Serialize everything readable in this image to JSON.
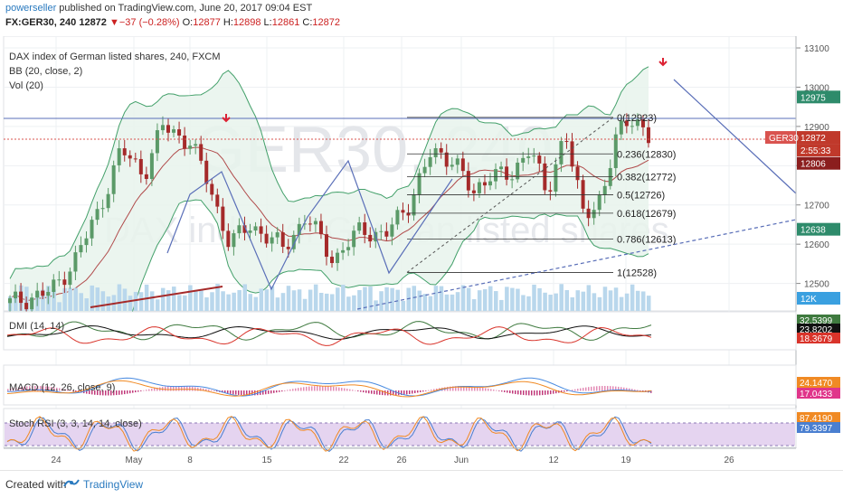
{
  "header": {
    "author": "powerseller",
    "published": " published on TradingView.com, June 20, 2017 09:04 EST",
    "symbol": "FX:GER30, 240",
    "last": "12872",
    "change": "−37 (−0.28%)",
    "open_label": "O:",
    "open": "12877",
    "high_label": "H:",
    "high": "12898",
    "low_label": "L:",
    "low": "12861",
    "close_label": "C:",
    "close": "12872"
  },
  "legend": {
    "instrument": "DAX index of German listed shares, 240, FXCM",
    "bb": "BB (20, close, 2)",
    "vol": "Vol (20)"
  },
  "watermark": {
    "symbol": "GER30, 240",
    "name": "DAX index of German listed shares"
  },
  "colors": {
    "up": "#5b9a68",
    "down": "#a52a2a",
    "bb_fill": "#e7f3ec",
    "bb_line": "#43a06a",
    "vol": "#b9d7ec",
    "trend_blue": "#5a6fb8",
    "red_line": "#a52a2a",
    "grid": "#eef0f3",
    "stoch_fill": "#e5d4f0"
  },
  "chart_data": {
    "type": "candlestick",
    "price_axis": {
      "ticks": [
        "13100",
        "13000",
        "12900",
        "12800",
        "12700",
        "12600",
        "12500"
      ],
      "min": 12430,
      "max": 13130
    },
    "x_axis": {
      "ticks": [
        "24",
        "May",
        "8",
        "15",
        "22",
        "26",
        "Jun",
        "12",
        "19",
        "26"
      ]
    },
    "price_badges": {
      "upper_bb": "12975",
      "symbol_tag": "GER30",
      "last": "12872",
      "countdown": "2:55:33",
      "middle_bb": "12806",
      "lower_bb": "12638",
      "volume": "12K"
    },
    "fib_levels": [
      {
        "label": "0(12923)",
        "value": 12923
      },
      {
        "label": "0.236(12830)",
        "value": 12830
      },
      {
        "label": "0.382(12772)",
        "value": 12772
      },
      {
        "label": "0.5(12726)",
        "value": 12726
      },
      {
        "label": "0.618(12679)",
        "value": 12679
      },
      {
        "label": "0.786(12613)",
        "value": 12613
      },
      {
        "label": "1(12528)",
        "value": 12528
      }
    ],
    "indicators": [
      {
        "id": "dmi",
        "title": "DMI (14, 14)",
        "values": [
          {
            "label": "32.5399",
            "color": "#3f7a3f"
          },
          {
            "label": "23.8202",
            "color": "#111111"
          },
          {
            "label": "18.3679",
            "color": "#d9342b"
          }
        ]
      },
      {
        "id": "macd",
        "title": "MACD (12, 26, close, 9)",
        "values": [
          {
            "label": "24.1470",
            "color": "#f08a24"
          },
          {
            "label": "17.0433",
            "color": "#e0358a"
          }
        ]
      },
      {
        "id": "stoch",
        "title": "Stoch RSI (3, 3, 14, 14, close)",
        "values": [
          {
            "label": "87.4190",
            "color": "#f08a24"
          },
          {
            "label": "79.3397",
            "color": "#4a7fd0"
          }
        ]
      }
    ]
  },
  "footer": {
    "created_with": "Created with",
    "brand": "TradingView"
  }
}
